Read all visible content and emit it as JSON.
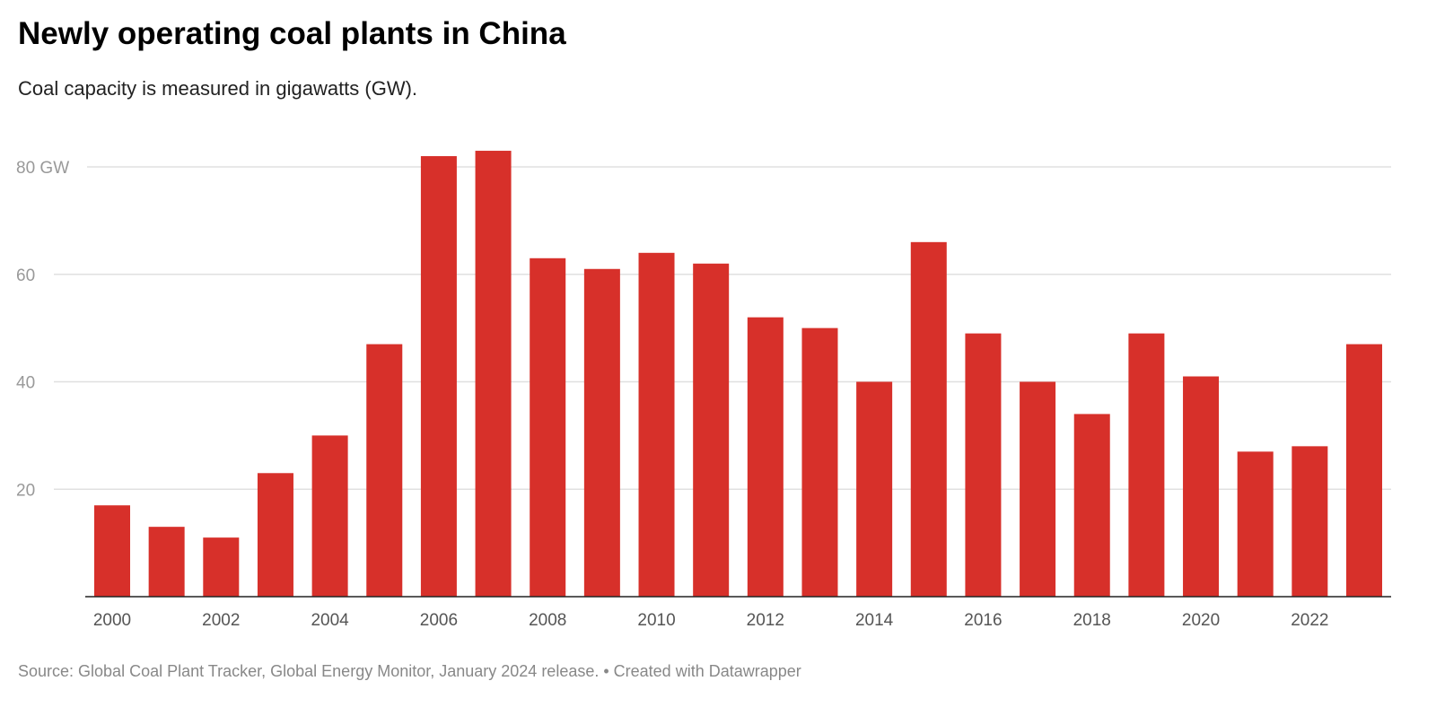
{
  "title": "Newly operating coal plants in China",
  "subtitle": "Coal capacity is measured in gigawatts (GW).",
  "source": "Source: Global Coal Plant Tracker, Global Energy Monitor, January 2024 release. • Created with Datawrapper",
  "chart_data": {
    "type": "bar",
    "categories": [
      "2000",
      "2001",
      "2002",
      "2003",
      "2004",
      "2005",
      "2006",
      "2007",
      "2008",
      "2009",
      "2010",
      "2011",
      "2012",
      "2013",
      "2014",
      "2015",
      "2016",
      "2017",
      "2018",
      "2019",
      "2020",
      "2021",
      "2022",
      "2023"
    ],
    "values": [
      17,
      13,
      11,
      23,
      30,
      47,
      82,
      83,
      63,
      61,
      64,
      62,
      52,
      50,
      40,
      66,
      49,
      40,
      34,
      49,
      41,
      27,
      28,
      47
    ],
    "ylim": [
      0,
      80
    ],
    "yticks": [
      {
        "value": 20,
        "label": "20"
      },
      {
        "value": 40,
        "label": "40"
      },
      {
        "value": 60,
        "label": "60"
      },
      {
        "value": 80,
        "label": "80 GW"
      }
    ],
    "xtick_labels": [
      "2000",
      "2002",
      "2004",
      "2006",
      "2008",
      "2010",
      "2012",
      "2014",
      "2016",
      "2018",
      "2020",
      "2022"
    ],
    "grid": true,
    "bar_color": "#d7302a"
  }
}
